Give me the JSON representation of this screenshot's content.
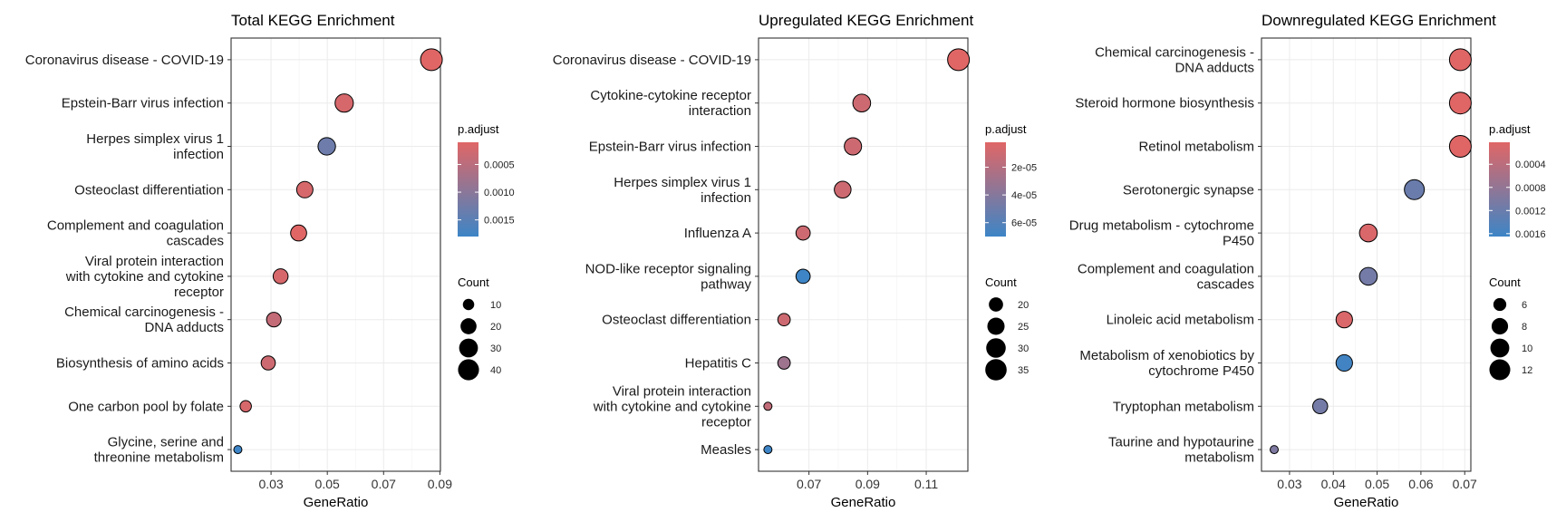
{
  "chart_data": [
    {
      "type": "scatter",
      "title": "Total KEGG Enrichment",
      "xlabel": "GeneRatio",
      "xlim": [
        0.0158,
        0.0902
      ],
      "xticks": [
        0.03,
        0.05,
        0.07,
        0.09
      ],
      "xtick_labels": [
        "0.03",
        "0.05",
        "0.07",
        "0.09"
      ],
      "grid": true,
      "points": [
        {
          "label": "Coronavirus disease - COVID-19",
          "x": 0.087,
          "count": 44,
          "padj": 0.0001
        },
        {
          "label": "Epstein-Barr virus infection",
          "x": 0.056,
          "count": 28,
          "padj": 0.0002
        },
        {
          "label": "Herpes simplex virus 1\ninfection",
          "x": 0.0498,
          "count": 25,
          "padj": 0.0013
        },
        {
          "label": "Osteoclast differentiation",
          "x": 0.042,
          "count": 21,
          "padj": 0.0002
        },
        {
          "label": "Complement and coagulation\ncascades",
          "x": 0.0398,
          "count": 20,
          "padj": 0.0001
        },
        {
          "label": "Viral protein interaction\nwith cytokine and cytokine\nreceptor",
          "x": 0.0334,
          "count": 17,
          "padj": 0.0002
        },
        {
          "label": "Chemical carcinogenesis -\nDNA adducts",
          "x": 0.031,
          "count": 16,
          "padj": 0.0004
        },
        {
          "label": "Biosynthesis of amino acids",
          "x": 0.029,
          "count": 15,
          "padj": 0.0003
        },
        {
          "label": "One carbon pool by folate",
          "x": 0.021,
          "count": 10,
          "padj": 0.0002
        },
        {
          "label": "Glycine, serine and\nthreonine metabolism",
          "x": 0.0182,
          "count": 8,
          "padj": 0.0018
        }
      ],
      "color_legend": {
        "title": "p.adjust",
        "range": [
          0.0001,
          0.0018
        ],
        "ticks": [
          0.0005,
          0.001,
          0.0015
        ],
        "tick_labels": [
          "0.0005",
          "0.0010",
          "0.0015"
        ]
      },
      "size_legend": {
        "title": "Count",
        "range": [
          8,
          44
        ],
        "values": [
          10,
          20,
          30,
          40
        ],
        "labels": [
          "10",
          "20",
          "30",
          "40"
        ]
      }
    },
    {
      "type": "scatter",
      "title": "Upregulated KEGG Enrichment",
      "xlabel": "GeneRatio",
      "xlim": [
        0.0528,
        0.1242
      ],
      "xticks": [
        0.07,
        0.09,
        0.11
      ],
      "xtick_labels": [
        "0.07",
        "0.09",
        "0.11"
      ],
      "grid": true,
      "points": [
        {
          "label": "Coronavirus disease - COVID-19",
          "x": 0.121,
          "count": 36,
          "padj": 2e-06
        },
        {
          "label": "Cytokine-cytokine receptor\ninteraction",
          "x": 0.088,
          "count": 26,
          "padj": 1e-05
        },
        {
          "label": "Epstein-Barr virus infection",
          "x": 0.085,
          "count": 25,
          "padj": 1e-05
        },
        {
          "label": "Herpes simplex virus 1\ninfection",
          "x": 0.0815,
          "count": 24,
          "padj": 1e-05
        },
        {
          "label": "Influenza A",
          "x": 0.068,
          "count": 20,
          "padj": 1e-05
        },
        {
          "label": "NOD-like receptor signaling\npathway",
          "x": 0.068,
          "count": 20,
          "padj": 7e-05
        },
        {
          "label": "Osteoclast differentiation",
          "x": 0.0615,
          "count": 18,
          "padj": 1e-05
        },
        {
          "label": "Hepatitis C",
          "x": 0.0615,
          "count": 18,
          "padj": 3e-05
        },
        {
          "label": "Viral protein interaction\nwith cytokine and cytokine\nreceptor",
          "x": 0.056,
          "count": 16,
          "padj": 1.5e-05
        },
        {
          "label": "Measles",
          "x": 0.056,
          "count": 16,
          "padj": 7e-05
        }
      ],
      "color_legend": {
        "title": "p.adjust",
        "range": [
          2e-06,
          7e-05
        ],
        "ticks": [
          2e-05,
          4e-05,
          6e-05
        ],
        "tick_labels": [
          "2e-05",
          "4e-05",
          "6e-05"
        ]
      },
      "size_legend": {
        "title": "Count",
        "range": [
          16,
          36
        ],
        "values": [
          20,
          25,
          30,
          35
        ],
        "labels": [
          "20",
          "25",
          "30",
          "35"
        ]
      }
    },
    {
      "type": "scatter",
      "title": "Downregulated KEGG Enrichment",
      "xlabel": "GeneRatio",
      "xlim": [
        0.0236,
        0.0714
      ],
      "xticks": [
        0.03,
        0.04,
        0.05,
        0.06,
        0.07
      ],
      "xtick_labels": [
        "0.03",
        "0.04",
        "0.05",
        "0.06",
        "0.07"
      ],
      "grid": true,
      "points": [
        {
          "label": "Chemical carcinogenesis -\nDNA adducts",
          "x": 0.069,
          "count": 13,
          "padj": 2e-05
        },
        {
          "label": "Steroid hormone biosynthesis",
          "x": 0.069,
          "count": 13,
          "padj": 2e-05
        },
        {
          "label": "Retinol metabolism",
          "x": 0.069,
          "count": 13,
          "padj": 2e-05
        },
        {
          "label": "Serotonergic synapse",
          "x": 0.0585,
          "count": 11,
          "padj": 0.0012
        },
        {
          "label": "Drug metabolism - cytochrome\nP450",
          "x": 0.048,
          "count": 9,
          "padj": 8e-05
        },
        {
          "label": "Complement and coagulation\ncascades",
          "x": 0.048,
          "count": 9,
          "padj": 0.0011
        },
        {
          "label": "Linoleic acid metabolism",
          "x": 0.0425,
          "count": 8,
          "padj": 8e-05
        },
        {
          "label": "Metabolism of xenobiotics by\ncytochrome P450",
          "x": 0.0425,
          "count": 8,
          "padj": 0.0016
        },
        {
          "label": "Tryptophan metabolism",
          "x": 0.037,
          "count": 7,
          "padj": 0.0011
        },
        {
          "label": "Taurine and hypotaurine\nmetabolism",
          "x": 0.0265,
          "count": 5,
          "padj": 0.001
        }
      ],
      "color_legend": {
        "title": "p.adjust",
        "range": [
          2e-05,
          0.00165
        ],
        "ticks": [
          0.0004,
          0.0008,
          0.0012,
          0.0016
        ],
        "tick_labels": [
          "0.0004",
          "0.0008",
          "0.0012",
          "0.0016"
        ]
      },
      "size_legend": {
        "title": "Count",
        "range": [
          5,
          13
        ],
        "values": [
          6,
          8,
          10,
          12
        ],
        "labels": [
          "6",
          "8",
          "10",
          "12"
        ]
      }
    }
  ],
  "colors": {
    "low_padj": "#E06666",
    "high_padj": "#3D85C6",
    "point_stroke": "#000000",
    "grid": "#EBEBEB",
    "panel_border": "#333333"
  }
}
